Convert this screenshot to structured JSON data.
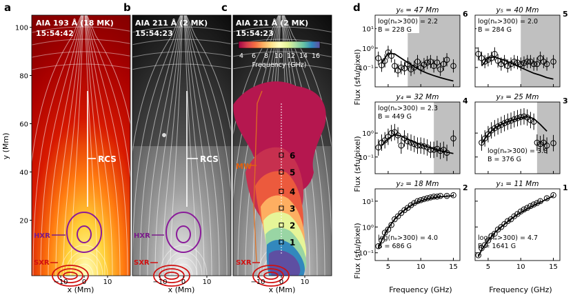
{
  "panel_letters": {
    "a": "a",
    "b": "b",
    "c": "c",
    "d": "d"
  },
  "images": {
    "a": {
      "title": "AIA 193 Å (18 MK)",
      "time": "15:54:42"
    },
    "b": {
      "title": "AIA 211 Å (2 MK)",
      "time": "15:54:23"
    },
    "c": {
      "title": "AIA 211 Å (2 MK)",
      "time": "15:54:23"
    }
  },
  "image_axes": {
    "ylabel": "y (Mm)",
    "xlabel": "x (Mm)",
    "yticks": [
      "20",
      "40",
      "60",
      "80",
      "100"
    ],
    "xticks": [
      "−10",
      "0",
      "10"
    ]
  },
  "annotations": {
    "rcs": "RCS",
    "hxr": "HXR",
    "sxr": "SXR",
    "mw": "MW"
  },
  "colorbar": {
    "label": "Frequency (GHz)",
    "ticks": [
      "4",
      "6",
      "8",
      "10",
      "12",
      "14",
      "16"
    ],
    "colors": [
      "#9e0142",
      "#d53e4f",
      "#f46d43",
      "#fdae61",
      "#fee08b",
      "#ffffbf",
      "#e6f598",
      "#abdda4",
      "#66c2a5",
      "#3288bd",
      "#5e4fa2"
    ]
  },
  "box_numbers": [
    "6",
    "5",
    "4",
    "3",
    "2",
    "1"
  ],
  "chart_data": {
    "type": "scatter",
    "xlabel": "Frequency (GHz)",
    "ylabel": "Flux (sfu/pixel)",
    "xlim": [
      3,
      16
    ],
    "xticks": [
      "5",
      "10",
      "15"
    ],
    "spectra": [
      {
        "id": "6",
        "label": "y₆ = 47 Mm",
        "ne": "log(nₑ>300) = 2.2",
        "B": "B = 228 G",
        "ylim": [
          0.01,
          50
        ],
        "yticks": [
          "10⁻¹",
          "10⁰",
          "10¹"
        ],
        "shade_from": 8,
        "x": [
          3.5,
          4,
          4.5,
          5,
          5.5,
          6,
          6.5,
          7,
          7.5,
          8,
          8.5,
          9,
          9.5,
          10,
          10.5,
          11,
          11.5,
          12,
          12.5,
          13,
          13.5,
          14,
          15
        ],
        "y": [
          0.3,
          0.13,
          0.22,
          0.6,
          0.4,
          0.12,
          0.07,
          0.1,
          0.09,
          0.15,
          0.08,
          0.1,
          0.2,
          0.1,
          0.14,
          0.18,
          0.2,
          0.12,
          0.18,
          0.08,
          0.15,
          0.25,
          0.12
        ],
        "fit_x": [
          4,
          5,
          6,
          7,
          8,
          9,
          10,
          11,
          12,
          13,
          14,
          15
        ],
        "fit_y": [
          0.16,
          0.55,
          0.5,
          0.3,
          0.18,
          0.11,
          0.07,
          0.05,
          0.038,
          0.03,
          0.024,
          0.02
        ]
      },
      {
        "id": "5",
        "label": "y₅ = 40 Mm",
        "ne": "log(nₑ>300) = 2.0",
        "B": "B = 284 G",
        "ylim": [
          0.01,
          50
        ],
        "yticks": [
          "10⁻¹",
          "10⁰",
          "10¹"
        ],
        "shade_from": 10,
        "x": [
          3.5,
          4,
          4.5,
          5,
          5.5,
          6,
          6.5,
          7,
          7.5,
          8,
          8.5,
          9,
          9.5,
          10,
          10.5,
          11,
          11.5,
          12,
          12.5,
          13,
          13.5,
          14,
          15
        ],
        "y": [
          0.5,
          0.3,
          0.2,
          0.25,
          0.3,
          0.5,
          0.22,
          0.15,
          0.2,
          0.12,
          0.15,
          0.2,
          0.18,
          0.15,
          0.17,
          0.2,
          0.2,
          0.15,
          0.15,
          0.3,
          0.2,
          0.15,
          0.2
        ],
        "fit_x": [
          4,
          5,
          6,
          7,
          8,
          9,
          10,
          11,
          12,
          13,
          14,
          15
        ],
        "fit_y": [
          0.12,
          0.32,
          0.35,
          0.27,
          0.2,
          0.14,
          0.1,
          0.07,
          0.05,
          0.04,
          0.03,
          0.025
        ]
      },
      {
        "id": "4",
        "label": "y₄ = 32 Mm",
        "ne": "log(nₑ>300) = 2.3",
        "B": "B = 449 G",
        "ylim": [
          0.02,
          20
        ],
        "yticks": [
          "10⁻¹",
          "10⁰"
        ],
        "shade_from": 12,
        "x": [
          3.5,
          4,
          4.5,
          5,
          5.5,
          6,
          6.5,
          7,
          7.5,
          8,
          8.5,
          9,
          9.5,
          10,
          10.5,
          11,
          11.5,
          12,
          12.5,
          13,
          13.5,
          14,
          15
        ],
        "y": [
          0.25,
          0.4,
          0.5,
          0.7,
          1.0,
          1.1,
          0.8,
          0.3,
          0.6,
          0.45,
          0.4,
          0.35,
          0.3,
          0.3,
          0.28,
          0.25,
          0.2,
          0.2,
          0.22,
          0.18,
          0.2,
          0.15,
          0.6
        ],
        "fit_x": [
          4,
          5,
          6,
          7,
          8,
          9,
          10,
          11,
          12,
          13,
          14,
          15
        ],
        "fit_y": [
          0.3,
          0.6,
          0.85,
          0.75,
          0.55,
          0.42,
          0.33,
          0.27,
          0.22,
          0.18,
          0.16,
          0.14
        ]
      },
      {
        "id": "3",
        "label": "y₃ = 25 Mm",
        "ne": "log(nₑ>300) = 3.8",
        "B": "B = 376 G",
        "ylim": [
          0.02,
          20
        ],
        "yticks": [
          "10⁻¹",
          "10⁰"
        ],
        "shade_from": 12.5,
        "x": [
          4,
          4.5,
          5,
          5.5,
          6,
          6.5,
          7,
          7.5,
          8,
          8.5,
          9,
          9.5,
          10,
          10.5,
          11,
          11.5,
          12,
          12.5,
          13,
          13.5,
          14,
          15
        ],
        "y": [
          0.4,
          0.6,
          0.9,
          1.3,
          1.6,
          1.9,
          2.2,
          2.6,
          3.0,
          3.3,
          3.8,
          4.2,
          4.7,
          5.0,
          4.5,
          3.5,
          3.0,
          0.4,
          0.35,
          0.4,
          0.3,
          0.38
        ],
        "fit_x": [
          4,
          5,
          6,
          7,
          8,
          9,
          10,
          11,
          12,
          13,
          14
        ],
        "fit_y": [
          0.38,
          0.9,
          1.6,
          2.3,
          3.0,
          3.7,
          4.4,
          4.9,
          4.0,
          2.3,
          1.2
        ]
      },
      {
        "id": "2",
        "label": "y₂ = 18 Mm",
        "ne": "log(nₑ>300) = 4.0",
        "B": "B = 686 G",
        "ylim": [
          0.05,
          30
        ],
        "yticks": [
          "10⁻¹",
          "10⁰",
          "10¹"
        ],
        "shade_from": null,
        "x": [
          3.5,
          4,
          4.5,
          5,
          5.5,
          6,
          6.5,
          7,
          7.5,
          8,
          8.5,
          9,
          9.5,
          10,
          10.5,
          11,
          11.5,
          12,
          12.5,
          13,
          14,
          15
        ],
        "y": [
          0.18,
          0.3,
          0.6,
          0.8,
          1.2,
          2.0,
          2.6,
          3.5,
          4.5,
          5.5,
          7.0,
          8.5,
          10,
          11,
          12,
          13,
          14,
          15,
          15,
          16,
          16,
          17
        ],
        "fit_x": [
          3.5,
          4,
          5,
          6,
          7,
          8,
          9,
          10,
          11,
          12,
          13,
          14,
          15
        ],
        "fit_y": [
          0.15,
          0.3,
          0.9,
          2.0,
          3.6,
          5.6,
          8.0,
          10,
          12,
          13.5,
          14.8,
          15.6,
          16.2
        ]
      },
      {
        "id": "1",
        "label": "y₁ = 11 Mm",
        "ne": "log(nₑ>300) = 4.7",
        "B": "B = 1641 G",
        "ylim": [
          0.05,
          30
        ],
        "yticks": [
          "10⁻¹",
          "10⁰",
          "10¹"
        ],
        "shade_from": null,
        "x": [
          3.5,
          4,
          4.5,
          5,
          5.5,
          6,
          6.5,
          7,
          7.5,
          8,
          8.5,
          9,
          9.5,
          10,
          10.5,
          11,
          11.5,
          12,
          12.5,
          13,
          14,
          15
        ],
        "y": [
          0.08,
          0.15,
          0.2,
          0.3,
          0.45,
          0.55,
          0.8,
          1.0,
          1.3,
          1.7,
          2.0,
          2.6,
          3.2,
          4.0,
          4.8,
          5.5,
          6.5,
          7.5,
          8.5,
          10,
          13,
          17
        ],
        "fit_x": [
          3.5,
          4,
          5,
          6,
          7,
          8,
          9,
          10,
          11,
          12,
          13,
          14,
          15
        ],
        "fit_y": [
          0.07,
          0.13,
          0.3,
          0.6,
          1.0,
          1.6,
          2.5,
          3.6,
          5.0,
          6.8,
          9.0,
          12,
          16
        ]
      }
    ]
  }
}
